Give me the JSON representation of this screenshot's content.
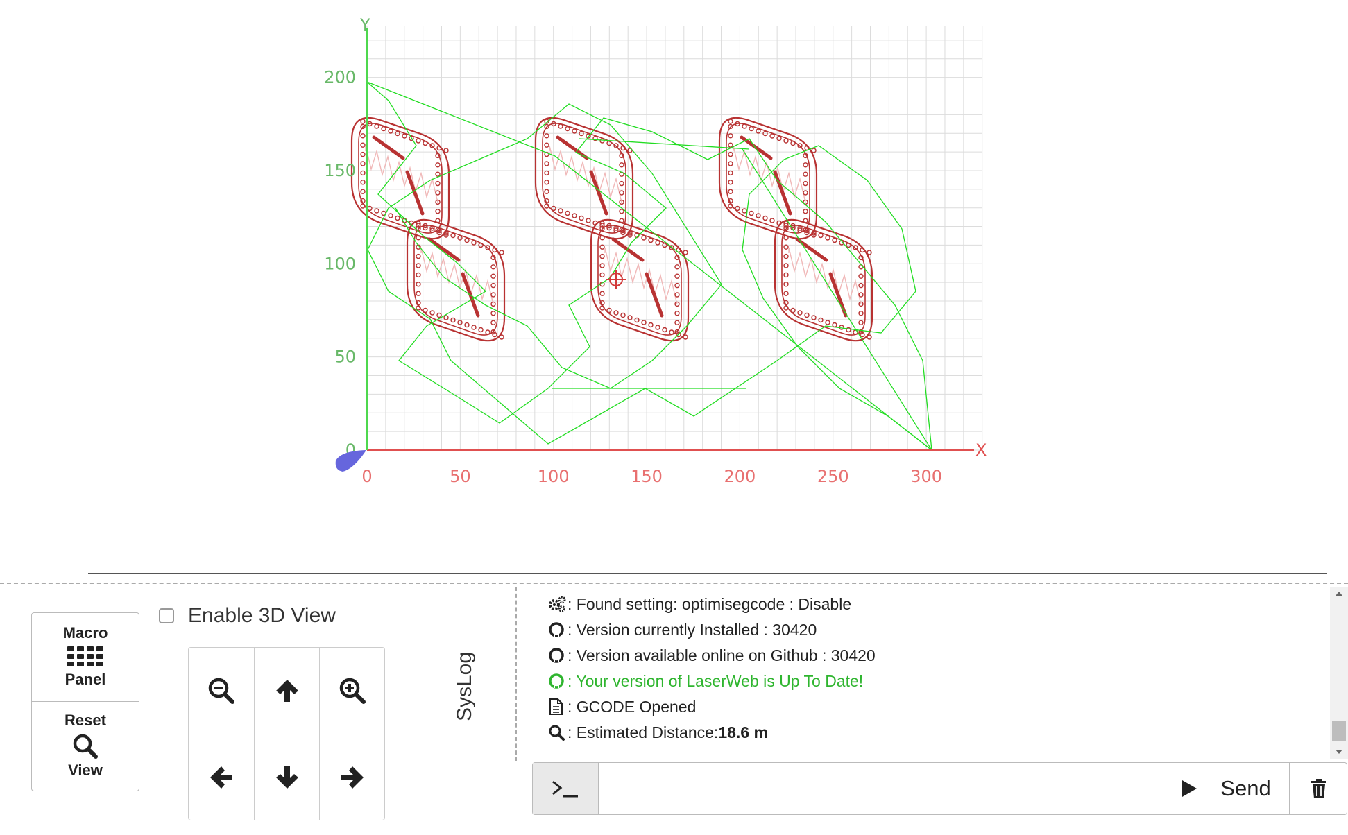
{
  "viewer": {
    "axis_x_letter": "X",
    "axis_y_letter": "Y",
    "x_ticks": [
      "0",
      "50",
      "100",
      "150",
      "200",
      "250",
      "300"
    ],
    "y_ticks": [
      "0",
      "50",
      "100",
      "150",
      "200"
    ],
    "colors": {
      "grid": "#dcdcdc",
      "x_axis": "#e05050",
      "y_axis": "#4ed84e",
      "cut_path": "#b83232",
      "travel_path": "#22dd22",
      "engrave": "#f0b8b8",
      "origin_marker": "#6666dd"
    }
  },
  "side_panel": {
    "macro_top": "Macro",
    "macro_bottom": "Panel",
    "macro_icon": "grid-icon",
    "reset_top": "Reset",
    "reset_bottom": "View",
    "reset_icon": "search-icon"
  },
  "view_toggle": {
    "label": "Enable 3D View",
    "checked": false
  },
  "jog": {
    "icons": [
      "zoom-out-icon",
      "arrow-up-icon",
      "zoom-in-icon",
      "arrow-left-icon",
      "arrow-down-icon",
      "arrow-right-icon"
    ]
  },
  "syslog": {
    "label": "SysLog",
    "lines": [
      {
        "icon": "cogs-icon",
        "text": ": Found setting: optimisegcode : Disable"
      },
      {
        "icon": "github-icon",
        "text": ": Version currently Installed : 30420"
      },
      {
        "icon": "github-icon",
        "text": ": Version available online on Github : 30420"
      },
      {
        "icon": "github-icon",
        "text": ": Your version of LaserWeb is Up To Date!",
        "color": "#2fb52f"
      },
      {
        "icon": "file-icon",
        "text": ": GCODE Opened"
      },
      {
        "icon": "search-icon",
        "text": ": Estimated Distance: ",
        "value": "18.6 m"
      }
    ]
  },
  "command": {
    "prompt_icon": "terminal-icon",
    "input_value": "",
    "send_label": "Send",
    "send_icon": "play-icon",
    "clear_icon": "trash-icon"
  }
}
